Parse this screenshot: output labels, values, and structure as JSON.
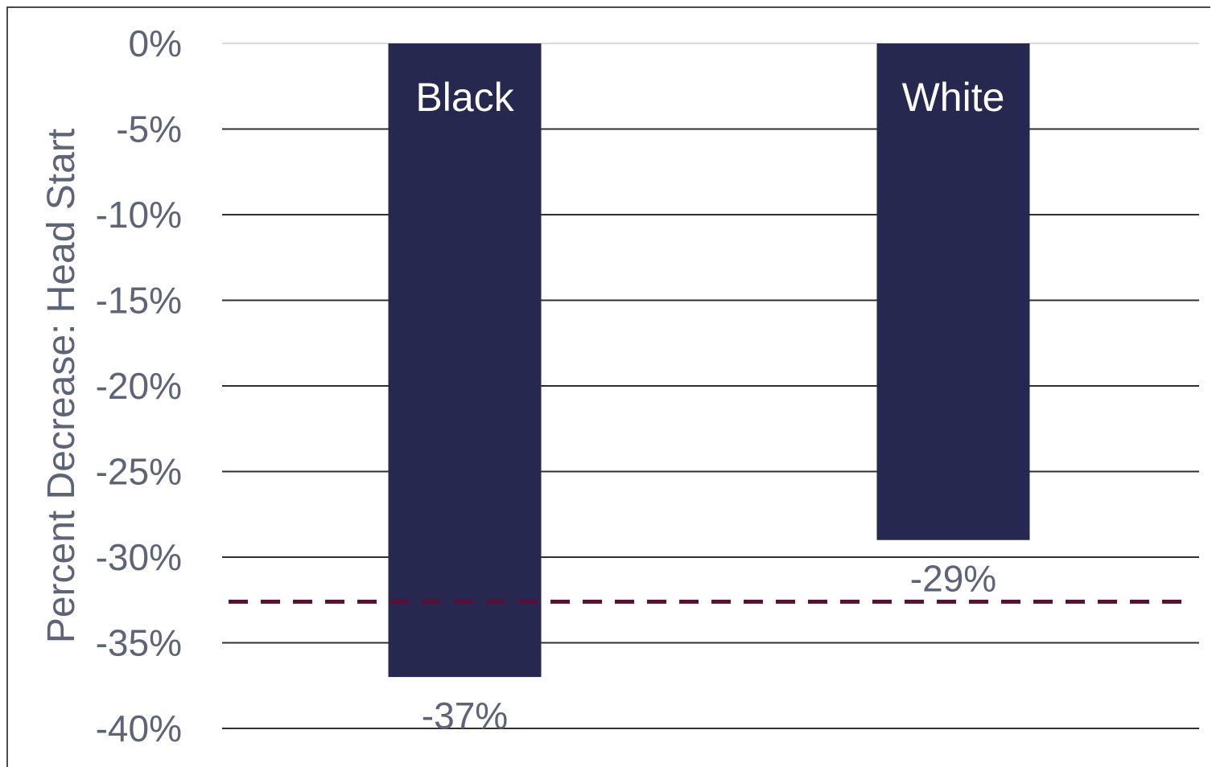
{
  "chart_data": {
    "type": "bar",
    "categories": [
      "Black",
      "White"
    ],
    "values": [
      -37,
      -29
    ],
    "data_labels": [
      "-37%",
      "-29%"
    ],
    "ylabel": "Percent Decrease: Head Start",
    "ylim": [
      -40,
      0
    ],
    "yticks": [
      0,
      -5,
      -10,
      -15,
      -20,
      -25,
      -30,
      -35,
      -40
    ],
    "ytick_labels": [
      "0%",
      "-5%",
      "-10%",
      "-15%",
      "-20%",
      "-25%",
      "-30%",
      "-35%",
      "-40%"
    ],
    "reference_line": {
      "value": -32.6,
      "style": "dashed"
    },
    "grid": true,
    "category_labels_inside_bars": true
  },
  "colors": {
    "bar": "#262850",
    "reference_line": "#5b0e35",
    "gridline_zero": "#d9d9d9",
    "gridline": "#2f2f2f",
    "text": "#5e6478"
  }
}
